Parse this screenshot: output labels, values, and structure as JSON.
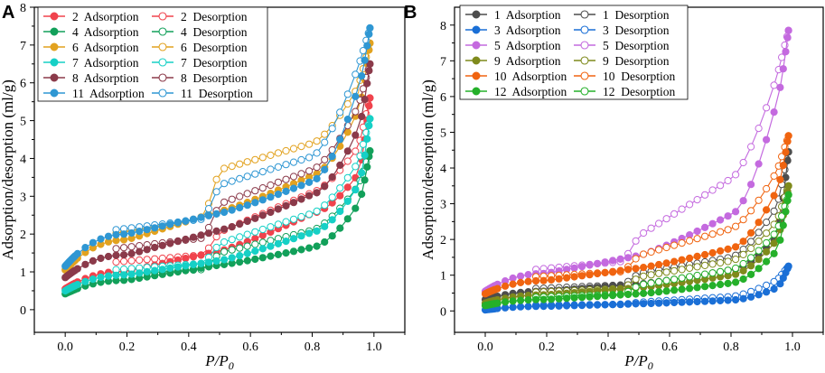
{
  "chart_data": [
    {
      "type": "line",
      "panel_label": "A",
      "xlabel": "P/P₀",
      "xlabel_main": "P/P",
      "xlabel_sub": "0",
      "ylabel": "Adsorption/desorption (ml/g)",
      "xlim": [
        -0.1,
        1.1
      ],
      "ylim": [
        -0.6,
        8
      ],
      "xticks": [
        0.0,
        0.2,
        0.4,
        0.6,
        0.8,
        1.0
      ],
      "yticks": [
        0,
        1,
        2,
        3,
        4,
        5,
        6,
        7,
        8
      ],
      "xtick_labels": [
        "0.0",
        "0.2",
        "0.4",
        "0.6",
        "0.8",
        "1.0"
      ],
      "ytick_labels": [
        "0",
        "1",
        "2",
        "3",
        "4",
        "5",
        "6",
        "7",
        "8"
      ],
      "samples": [
        {
          "id": "2",
          "color": "#f0434d",
          "adsorption": "2  Adsorption",
          "desorption": "2  Desorption",
          "y0": 0.55,
          "y02": 1.02,
          "y05": 1.55,
          "y08": 2.55,
          "y095": 3.6,
          "ymax": 5.6,
          "dy02": 1.25,
          "dy05": 2.05,
          "dy08": 3.1
        },
        {
          "id": "4",
          "color": "#12a05a",
          "adsorption": "4  Adsorption",
          "desorption": "4  Desorption",
          "y0": 0.42,
          "y02": 0.78,
          "y05": 1.18,
          "y08": 1.65,
          "y095": 2.8,
          "ymax": 4.2,
          "dy02": 0.92,
          "dy05": 1.5,
          "dy08": 2.1
        },
        {
          "id": "6",
          "color": "#e2a21f",
          "adsorption": "6  Adsorption",
          "desorption": "6  Desorption",
          "y0": 1.05,
          "y02": 1.85,
          "y05": 2.6,
          "y08": 3.55,
          "y095": 5.3,
          "ymax": 7.05,
          "dy02": 2.0,
          "dy05": 3.7,
          "dy08": 4.4
        },
        {
          "id": "7",
          "color": "#16d0c6",
          "adsorption": "7  Adsorption",
          "desorption": "7  Desorption",
          "y0": 0.5,
          "y02": 0.92,
          "y05": 1.3,
          "y08": 2.05,
          "y095": 3.3,
          "ymax": 5.05,
          "dy02": 1.05,
          "dy05": 1.75,
          "dy08": 2.55
        },
        {
          "id": "8",
          "color": "#8b3a4a",
          "adsorption": "8  Adsorption",
          "desorption": "8  Desorption",
          "y0": 0.85,
          "y02": 1.45,
          "y05": 2.1,
          "y08": 3.05,
          "y095": 4.8,
          "ymax": 6.5,
          "dy02": 1.6,
          "dy05": 2.8,
          "dy08": 3.7
        },
        {
          "id": "11",
          "color": "#2f97d3",
          "adsorption": "11  Adsorption",
          "desorption": "11  Desorption",
          "y0": 1.15,
          "y02": 2.0,
          "y05": 2.55,
          "y08": 3.4,
          "y095": 5.9,
          "ymax": 7.45,
          "dy02": 2.1,
          "dy05": 3.3,
          "dy08": 4.05
        }
      ]
    },
    {
      "type": "line",
      "panel_label": "B",
      "xlabel": "P/P₀",
      "xlabel_main": "P/P",
      "xlabel_sub": "0",
      "ylabel": "Adsorption/desorption (ml/g)",
      "xlim": [
        -0.1,
        1.1
      ],
      "ylim": [
        -0.6,
        8.5
      ],
      "xticks": [
        0.0,
        0.2,
        0.4,
        0.6,
        0.8,
        1.0
      ],
      "yticks": [
        0,
        1,
        2,
        3,
        4,
        5,
        6,
        7,
        8
      ],
      "xtick_labels": [
        "0.0",
        "0.2",
        "0.4",
        "0.6",
        "0.8",
        "1.0"
      ],
      "ytick_labels": [
        "0",
        "1",
        "2",
        "3",
        "4",
        "5",
        "6",
        "7",
        "8"
      ],
      "samples": [
        {
          "id": "1",
          "color": "#4d4d4d",
          "adsorption": "1  Adsorption",
          "desorption": "1  Desorption",
          "y0": 0.32,
          "y02": 0.55,
          "y05": 0.75,
          "y08": 1.15,
          "y095": 2.1,
          "ymax": 4.45,
          "dy02": 0.62,
          "dy05": 1.05,
          "dy08": 1.5
        },
        {
          "id": "3",
          "color": "#1a6fd6",
          "adsorption": "3  Adsorption",
          "desorption": "3  Desorption",
          "y0": 0.03,
          "y02": 0.13,
          "y05": 0.2,
          "y08": 0.3,
          "y095": 0.65,
          "ymax": 1.25,
          "dy02": 0.16,
          "dy05": 0.24,
          "dy08": 0.4
        },
        {
          "id": "5",
          "color": "#c46adf",
          "adsorption": "5  Adsorption",
          "desorption": "5  Desorption",
          "y0": 0.55,
          "y02": 1.05,
          "y05": 1.55,
          "y08": 2.7,
          "y095": 5.9,
          "ymax": 7.85,
          "dy02": 1.15,
          "dy05": 2.1,
          "dy08": 3.7
        },
        {
          "id": "9",
          "color": "#7f8a1c",
          "adsorption": "9  Adsorption",
          "desorption": "9  Desorption",
          "y0": 0.22,
          "y02": 0.45,
          "y05": 0.65,
          "y08": 1.0,
          "y095": 2.0,
          "ymax": 3.5,
          "dy02": 0.52,
          "dy05": 0.95,
          "dy08": 1.4
        },
        {
          "id": "10",
          "color": "#f06410",
          "adsorption": "10  Adsorption",
          "desorption": "10  Desorption",
          "y0": 0.48,
          "y02": 0.85,
          "y05": 1.2,
          "y08": 1.75,
          "y095": 3.4,
          "ymax": 4.9,
          "dy02": 0.95,
          "dy05": 1.55,
          "dy08": 2.3
        },
        {
          "id": "12",
          "color": "#25b02a",
          "adsorption": "12  Adsorption",
          "desorption": "12  Desorption",
          "y0": 0.15,
          "y02": 0.32,
          "y05": 0.48,
          "y08": 0.78,
          "y095": 1.7,
          "ymax": 3.25,
          "dy02": 0.38,
          "dy05": 0.72,
          "dy08": 1.15
        }
      ]
    }
  ]
}
